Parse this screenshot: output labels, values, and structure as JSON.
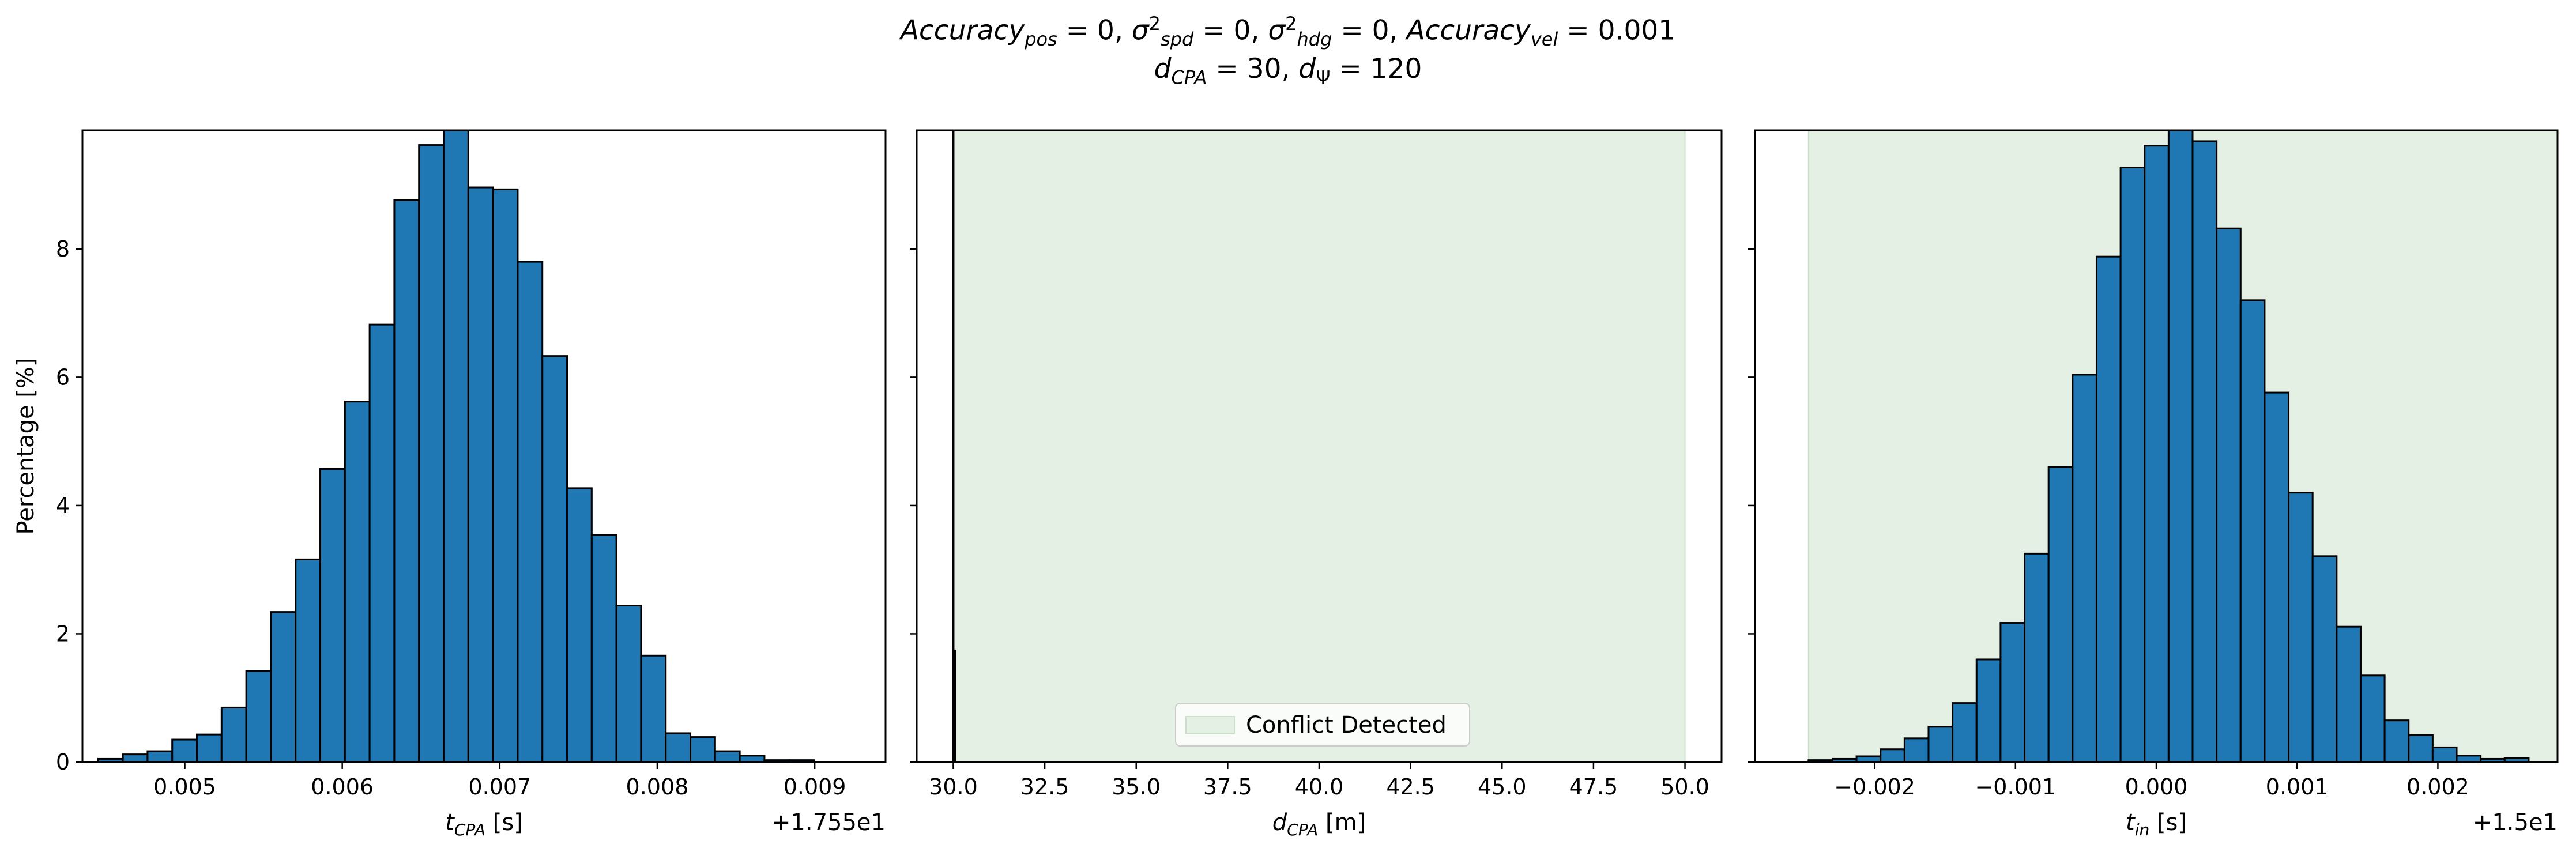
{
  "figure": {
    "title_line1": "Accuracy_pos = 0, σ²_spd = 0, σ²_hdg = 0, Accuracy_vel = 0.001",
    "title_line2": "d_CPA = 30, d_Ψ = 120"
  },
  "colors": {
    "bar_fill": "#1f77b4",
    "bar_edge": "#000000",
    "conflict_fill": "#e5f0e5",
    "conflict_edge": "#c9dfc9"
  },
  "chart_data": [
    {
      "type": "bar",
      "title": "",
      "xlabel": "t_CPA [s]",
      "ylabel": "Percentage [%]",
      "offset_label": "+1.755e1",
      "xlim": [
        0.00435,
        0.00945
      ],
      "ylim": [
        0,
        9.85
      ],
      "x_ticks": [
        0.005,
        0.006,
        0.007,
        0.008,
        0.009
      ],
      "x_tick_labels": [
        "0.005",
        "0.006",
        "0.007",
        "0.008",
        "0.009"
      ],
      "y_ticks": [
        0,
        2,
        4,
        6,
        8
      ],
      "y_tick_labels": [
        "0",
        "2",
        "4",
        "6",
        "8"
      ],
      "bin_start": 0.00445,
      "bin_width": 0.0001567,
      "values": [
        0.05,
        0.12,
        0.17,
        0.35,
        0.43,
        0.85,
        1.42,
        2.34,
        3.16,
        4.57,
        5.62,
        6.82,
        8.76,
        9.62,
        9.85,
        8.96,
        8.93,
        7.8,
        6.33,
        4.27,
        3.54,
        2.44,
        1.66,
        0.45,
        0.39,
        0.17,
        0.1,
        0.03,
        0.03
      ]
    },
    {
      "type": "bar",
      "title": "",
      "xlabel": "d_CPA [m]",
      "ylabel": "",
      "xlim": [
        29.0,
        51.0
      ],
      "ylim": [
        0,
        9.85
      ],
      "x_ticks": [
        30.0,
        32.5,
        35.0,
        37.5,
        40.0,
        42.5,
        45.0,
        47.5,
        50.0
      ],
      "x_tick_labels": [
        "30.0",
        "32.5",
        "35.0",
        "37.5",
        "40.0",
        "42.5",
        "45.0",
        "47.5",
        "50.0"
      ],
      "y_ticks": [
        0,
        2,
        4,
        6,
        8
      ],
      "y_tick_labels": [
        "",
        "",
        "",
        "",
        ""
      ],
      "conflict_region": [
        30.0,
        50.0
      ],
      "legend": {
        "label": "Conflict Detected",
        "placement": "lower center"
      },
      "bars": [
        {
          "x": 30.0,
          "value": 9.85
        },
        {
          "x": 30.05,
          "value": 1.75
        }
      ]
    },
    {
      "type": "bar",
      "title": "",
      "xlabel": "t_in [s]",
      "ylabel": "",
      "offset_label": "+1.5e1",
      "xlim": [
        -0.00285,
        0.00285
      ],
      "ylim": [
        0,
        9.85
      ],
      "x_ticks": [
        -0.002,
        -0.001,
        0.0,
        0.001,
        0.002
      ],
      "x_tick_labels": [
        "−0.002",
        "−0.001",
        "0.000",
        "0.001",
        "0.002"
      ],
      "y_ticks": [
        0,
        2,
        4,
        6,
        8
      ],
      "y_tick_labels": [
        "",
        "",
        "",
        "",
        ""
      ],
      "conflict_region": [
        -0.00247,
        0.00285
      ],
      "bin_start": -0.00247,
      "bin_width": 0.0001705,
      "values": [
        0.03,
        0.05,
        0.09,
        0.2,
        0.37,
        0.55,
        0.92,
        1.6,
        2.17,
        3.25,
        4.6,
        6.04,
        7.88,
        9.27,
        9.61,
        9.85,
        9.68,
        8.32,
        7.2,
        5.76,
        4.2,
        3.21,
        2.11,
        1.35,
        0.65,
        0.42,
        0.23,
        0.1,
        0.05,
        0.06
      ]
    }
  ]
}
